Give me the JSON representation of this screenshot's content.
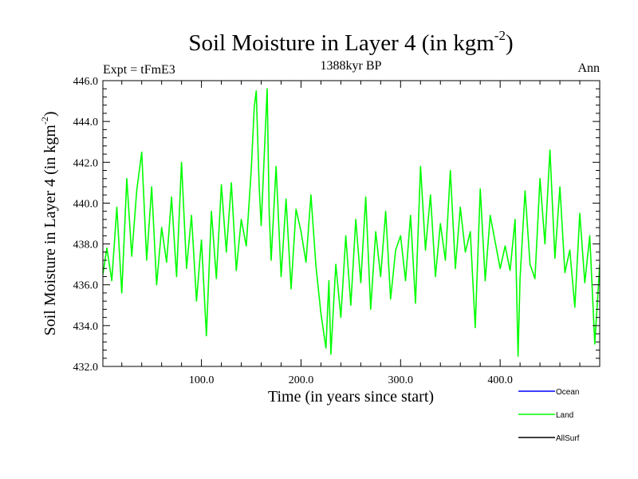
{
  "chart_data": {
    "type": "line",
    "title": "Soil Moisture in Layer 4 (in kgm",
    "title_sup": "-2",
    "title_close": ")",
    "subtitle_left": "Expt = tFmE3",
    "subtitle_center": "1388kyr BP",
    "subtitle_right": "Ann",
    "xlabel": "Time (in years since start)",
    "ylabel": "Soil Moisture in Layer 4 (in kgm",
    "ylabel_sup": "-2",
    "ylabel_close": ")",
    "xlim": [
      1,
      500
    ],
    "ylim": [
      432.0,
      446.0
    ],
    "xticks": [
      {
        "value": 100,
        "label": "100.0"
      },
      {
        "value": 200,
        "label": "200.0"
      },
      {
        "value": 300,
        "label": "300.0"
      },
      {
        "value": 400,
        "label": "400.0"
      }
    ],
    "yticks": [
      {
        "value": 432,
        "label": "432.0"
      },
      {
        "value": 434,
        "label": "434.0"
      },
      {
        "value": 436,
        "label": "436.0"
      },
      {
        "value": 438,
        "label": "438.0"
      },
      {
        "value": 440,
        "label": "440.0"
      },
      {
        "value": 442,
        "label": "442.0"
      },
      {
        "value": 444,
        "label": "444.0"
      },
      {
        "value": 446,
        "label": "446.0"
      }
    ],
    "legend": [
      {
        "name": "Ocean",
        "color": "#0000ff"
      },
      {
        "name": "Land",
        "color": "#00ff00"
      },
      {
        "name": "AllSurf",
        "color": "#000000"
      }
    ],
    "legend_position": "bottom-right",
    "series": [
      {
        "name": "Land",
        "color": "#00ff00",
        "x": [
          1,
          5,
          10,
          15,
          20,
          25,
          30,
          35,
          40,
          45,
          50,
          55,
          60,
          65,
          70,
          75,
          80,
          85,
          90,
          95,
          100,
          105,
          110,
          115,
          120,
          125,
          130,
          135,
          140,
          145,
          150,
          153,
          155,
          158,
          160,
          163,
          166,
          168,
          170,
          175,
          180,
          185,
          190,
          195,
          200,
          205,
          210,
          215,
          220,
          225,
          228,
          230,
          235,
          240,
          245,
          250,
          255,
          260,
          265,
          270,
          275,
          280,
          285,
          290,
          295,
          300,
          305,
          310,
          315,
          320,
          325,
          330,
          335,
          340,
          345,
          350,
          355,
          360,
          365,
          370,
          375,
          380,
          385,
          390,
          395,
          400,
          405,
          410,
          415,
          418,
          420,
          425,
          430,
          435,
          440,
          445,
          450,
          455,
          460,
          465,
          470,
          475,
          480,
          485,
          490,
          495,
          500
        ],
        "values": [
          436.5,
          437.8,
          436.2,
          439.8,
          435.6,
          441.2,
          437.4,
          440.6,
          442.5,
          437.2,
          440.8,
          436.0,
          438.8,
          437.1,
          440.3,
          436.4,
          442.0,
          436.8,
          439.4,
          435.2,
          438.2,
          433.5,
          439.6,
          436.3,
          440.9,
          437.6,
          441.0,
          436.7,
          439.2,
          437.9,
          441.6,
          444.7,
          445.5,
          440.8,
          438.9,
          442.3,
          445.6,
          439.6,
          437.2,
          441.8,
          436.4,
          440.2,
          435.8,
          439.7,
          438.6,
          437.1,
          440.4,
          436.9,
          434.6,
          432.9,
          436.2,
          432.6,
          437.0,
          434.4,
          438.4,
          435.0,
          439.2,
          436.1,
          440.3,
          434.8,
          438.6,
          436.4,
          439.6,
          435.3,
          437.7,
          438.4,
          436.2,
          439.4,
          435.1,
          441.8,
          437.7,
          440.4,
          436.4,
          439.0,
          437.2,
          441.6,
          436.8,
          439.8,
          437.6,
          438.6,
          433.9,
          440.7,
          436.2,
          439.4,
          438.1,
          436.8,
          437.9,
          436.7,
          439.2,
          432.5,
          436.3,
          440.6,
          437.0,
          436.3,
          441.2,
          438.0,
          442.6,
          437.3,
          440.8,
          436.6,
          437.7,
          434.9,
          439.5,
          436.1,
          438.4,
          433.1,
          437.0
        ]
      }
    ]
  }
}
